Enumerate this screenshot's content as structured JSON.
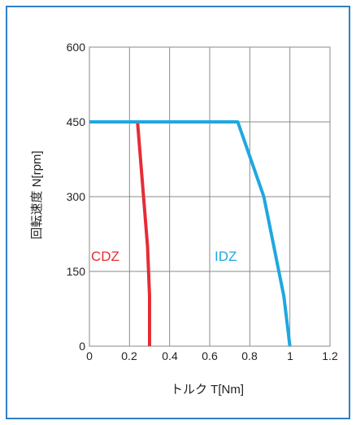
{
  "chart_data": {
    "type": "line",
    "xlabel": "トルク T[Nm]",
    "ylabel": "回転速度 N[rpm]",
    "xlim": [
      0,
      1.2
    ],
    "ylim": [
      0,
      600
    ],
    "xticks": [
      "0",
      "0.2",
      "0.4",
      "0.6",
      "0.8",
      "1",
      "1.2"
    ],
    "yticks": [
      "0",
      "150",
      "300",
      "450",
      "600"
    ],
    "grid": true,
    "legend": "inline labels",
    "series": [
      {
        "name": "CDZ",
        "color": "#e52d35",
        "points": [
          [
            0,
            450
          ],
          [
            0.24,
            450
          ],
          [
            0.27,
            300
          ],
          [
            0.29,
            200
          ],
          [
            0.3,
            100
          ],
          [
            0.3,
            0
          ]
        ]
      },
      {
        "name": "IDZ",
        "color": "#1fa7e0",
        "points": [
          [
            0,
            450
          ],
          [
            0.74,
            450
          ],
          [
            0.87,
            300
          ],
          [
            0.97,
            100
          ],
          [
            1.0,
            0
          ]
        ]
      }
    ]
  },
  "colors": {
    "frame_border": "#2e80c4",
    "grid": "#8a8a8a",
    "cdz": "#e52d35",
    "idz": "#1fa7e0"
  }
}
